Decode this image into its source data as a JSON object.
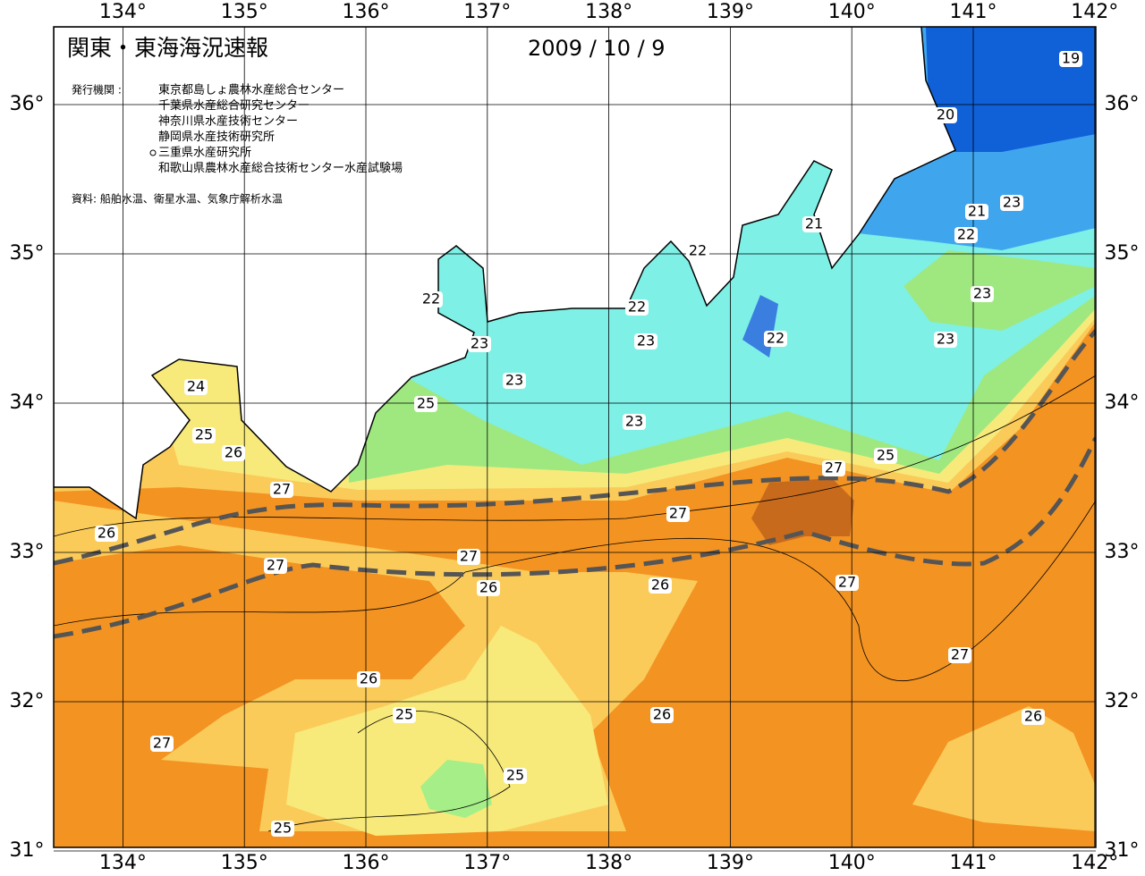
{
  "map": {
    "title": "関東・東海海況速報",
    "date": "2009 / 10 / 9",
    "publisher_label": "発行機関 :",
    "publishers": [
      "東京都島しょ農林水産総合センター",
      "千葉県水産総合研究センター",
      "神奈川県水産技術センター",
      "静岡県水産技術研究所",
      "三重県水産研究所",
      "和歌山県農林水産総合技術センター水産試験場"
    ],
    "source": "資料: 船舶水温、衛星水温、気象庁解析水温",
    "lon_ticks": [
      {
        "value": 134,
        "label": "134°"
      },
      {
        "value": 135,
        "label": "135°"
      },
      {
        "value": 136,
        "label": "136°"
      },
      {
        "value": 137,
        "label": "137°"
      },
      {
        "value": 138,
        "label": "138°"
      },
      {
        "value": 139,
        "label": "139°"
      },
      {
        "value": 140,
        "label": "140°"
      },
      {
        "value": 141,
        "label": "141°"
      },
      {
        "value": 142,
        "label": "142°"
      }
    ],
    "lat_ticks": [
      {
        "value": 31,
        "label": "31°"
      },
      {
        "value": 32,
        "label": "32°"
      },
      {
        "value": 33,
        "label": "33°"
      },
      {
        "value": 34,
        "label": "34°"
      },
      {
        "value": 35,
        "label": "35°"
      },
      {
        "value": 36,
        "label": "36°"
      }
    ],
    "contour_labels": [
      19,
      20,
      21,
      21,
      23,
      22,
      22,
      22,
      22,
      23,
      22,
      23,
      23,
      23,
      23,
      24,
      25,
      23,
      25,
      26,
      25,
      27,
      27,
      27,
      26,
      27,
      27,
      26,
      27,
      26,
      27,
      26,
      25,
      26,
      26,
      27,
      25,
      25
    ]
  }
}
